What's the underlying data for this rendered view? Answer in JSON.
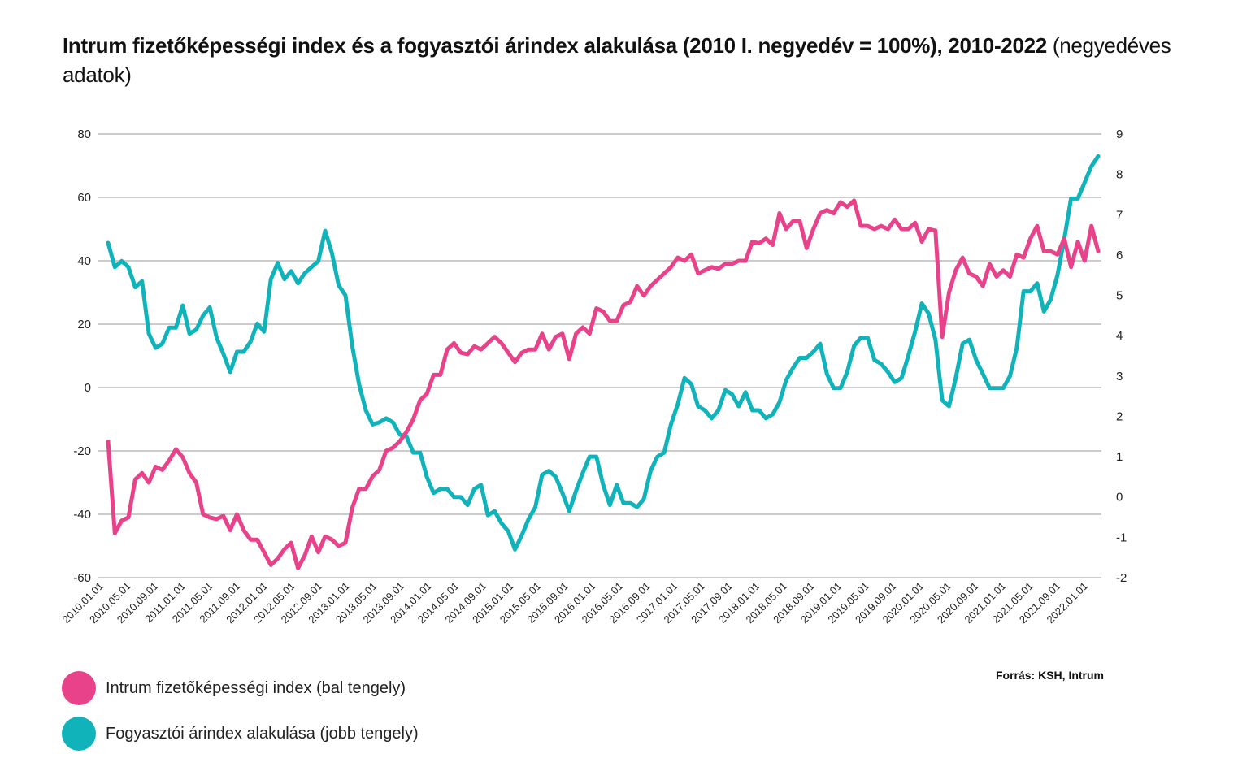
{
  "title": {
    "bold_part": "Intrum fizetőképességi index és a fogyasztói árindex alakulása (2010 I. negyedév = 100%), 2010-2022",
    "normal_part": " (negyedéves adatok)"
  },
  "source": "Forrás: KSH, Intrum",
  "chart_data": {
    "type": "line",
    "left_axis": {
      "ylim": [
        -60,
        80
      ],
      "ticks": [
        "80",
        "60",
        "40",
        "20",
        "0",
        "-20",
        "-40",
        "-60"
      ]
    },
    "right_axis": {
      "ylim": [
        -2,
        9
      ],
      "ticks": [
        "9",
        "8",
        "7",
        "6",
        "5",
        "4",
        "3",
        "2",
        "1",
        "0",
        "-1",
        "-2"
      ]
    },
    "x_labels": [
      "2010.01.01",
      "2010.05.01",
      "2010.09.01",
      "2011.01.01",
      "2011.05.01",
      "2011.09.01",
      "2012.01.01",
      "2012.05.01",
      "2012.09.01",
      "2013.01.01",
      "2013.05.01",
      "2013.09.01",
      "2014.01.01",
      "2014.05.01",
      "2014.09.01",
      "2015.01.01",
      "2015.05.01",
      "2015.09.01",
      "2016.01.01",
      "2016.05.01",
      "2016.09.01",
      "2017.01.01",
      "2017.05.01",
      "2017.09.01",
      "2018.01.01",
      "2018.05.01",
      "2018.09.01",
      "2019.01.01",
      "2019.05.01",
      "2019.09.01",
      "2020.01.01",
      "2020.05.01",
      "2020.09.01",
      "2021.01.01",
      "2021.05.01",
      "2021.09.01",
      "2022.01.01"
    ],
    "grid": "horizontal",
    "legend_position": "bottom-left",
    "series": [
      {
        "name": "Intrum fizetőképességi index (bal tengely)",
        "axis": "left",
        "color": "#e8438a",
        "values": [
          -17,
          -46,
          -42,
          -41,
          -29,
          -27,
          -30,
          -25,
          -26,
          -23,
          -19.5,
          -22,
          -27,
          -30,
          -40,
          -41,
          -41.5,
          -40.5,
          -45,
          -40,
          -45,
          -48,
          -48,
          -52,
          -56,
          -54,
          -51,
          -49,
          -57,
          -53,
          -47,
          -52,
          -47,
          -48,
          -50,
          -49,
          -38,
          -32,
          -32,
          -28,
          -26,
          -20,
          -19,
          -17,
          -14,
          -10,
          -4,
          -2,
          4,
          4,
          12,
          14,
          11,
          10.5,
          13,
          12,
          14,
          16,
          14,
          11,
          8,
          11,
          12,
          12,
          17,
          12,
          16,
          17,
          9,
          17,
          19,
          17,
          25,
          24,
          21,
          21,
          26,
          27,
          32,
          29,
          32,
          34,
          36,
          38,
          41,
          40,
          42,
          36,
          37,
          38,
          37.5,
          39,
          39,
          40,
          40,
          46,
          45.5,
          47,
          45,
          55,
          50,
          52.5,
          52.5,
          44,
          50,
          55,
          56,
          55,
          58.5,
          57,
          59,
          51,
          51,
          50,
          51,
          50,
          53,
          50,
          50,
          52,
          46,
          50,
          49.5,
          16,
          30,
          37,
          41,
          36,
          35,
          32,
          39,
          35,
          37,
          35,
          42,
          41,
          47,
          51,
          43,
          43,
          42,
          47,
          38,
          46,
          40,
          51,
          43
        ]
      },
      {
        "name": "Fogyasztói árindex alakulása (jobb tengely)",
        "axis": "right",
        "color": "#11b3bb",
        "values": [
          6.3,
          5.7,
          5.85,
          5.7,
          5.2,
          5.35,
          4.05,
          3.7,
          3.8,
          4.2,
          4.2,
          4.75,
          4.05,
          4.15,
          4.5,
          4.7,
          3.95,
          3.55,
          3.1,
          3.6,
          3.6,
          3.85,
          4.3,
          4.1,
          5.4,
          5.8,
          5.4,
          5.6,
          5.3,
          5.55,
          5.7,
          5.85,
          6.6,
          6.05,
          5.25,
          5.0,
          3.75,
          2.8,
          2.15,
          1.8,
          1.85,
          1.95,
          1.85,
          1.55,
          1.5,
          1.1,
          1.1,
          0.5,
          0.1,
          0.2,
          0.2,
          0.0,
          0.0,
          -0.2,
          0.2,
          0.3,
          -0.45,
          -0.35,
          -0.65,
          -0.85,
          -1.3,
          -0.95,
          -0.55,
          -0.25,
          0.55,
          0.65,
          0.5,
          0.1,
          -0.35,
          0.15,
          0.6,
          1.0,
          1.0,
          0.3,
          -0.2,
          0.3,
          -0.15,
          -0.15,
          -0.25,
          -0.05,
          0.65,
          1.0,
          1.1,
          1.8,
          2.3,
          2.95,
          2.8,
          2.25,
          2.15,
          1.95,
          2.15,
          2.65,
          2.55,
          2.25,
          2.6,
          2.15,
          2.15,
          1.95,
          2.05,
          2.35,
          2.9,
          3.2,
          3.45,
          3.45,
          3.6,
          3.8,
          3.05,
          2.7,
          2.7,
          3.1,
          3.75,
          3.95,
          3.95,
          3.4,
          3.3,
          3.1,
          2.85,
          2.95,
          3.5,
          4.1,
          4.8,
          4.55,
          3.9,
          2.4,
          2.25,
          2.95,
          3.8,
          3.9,
          3.4,
          3.05,
          2.7,
          2.7,
          2.7,
          3.0,
          3.7,
          5.1,
          5.1,
          5.3,
          4.6,
          4.9,
          5.5,
          6.4,
          7.4,
          7.4,
          7.8,
          8.2,
          8.45
        ]
      }
    ]
  },
  "legend": [
    {
      "label": "Intrum fizetőképességi index (bal tengely)",
      "color": "#e8438a"
    },
    {
      "label": "Fogyasztói árindex alakulása (jobb tengely)",
      "color": "#11b3bb"
    }
  ]
}
